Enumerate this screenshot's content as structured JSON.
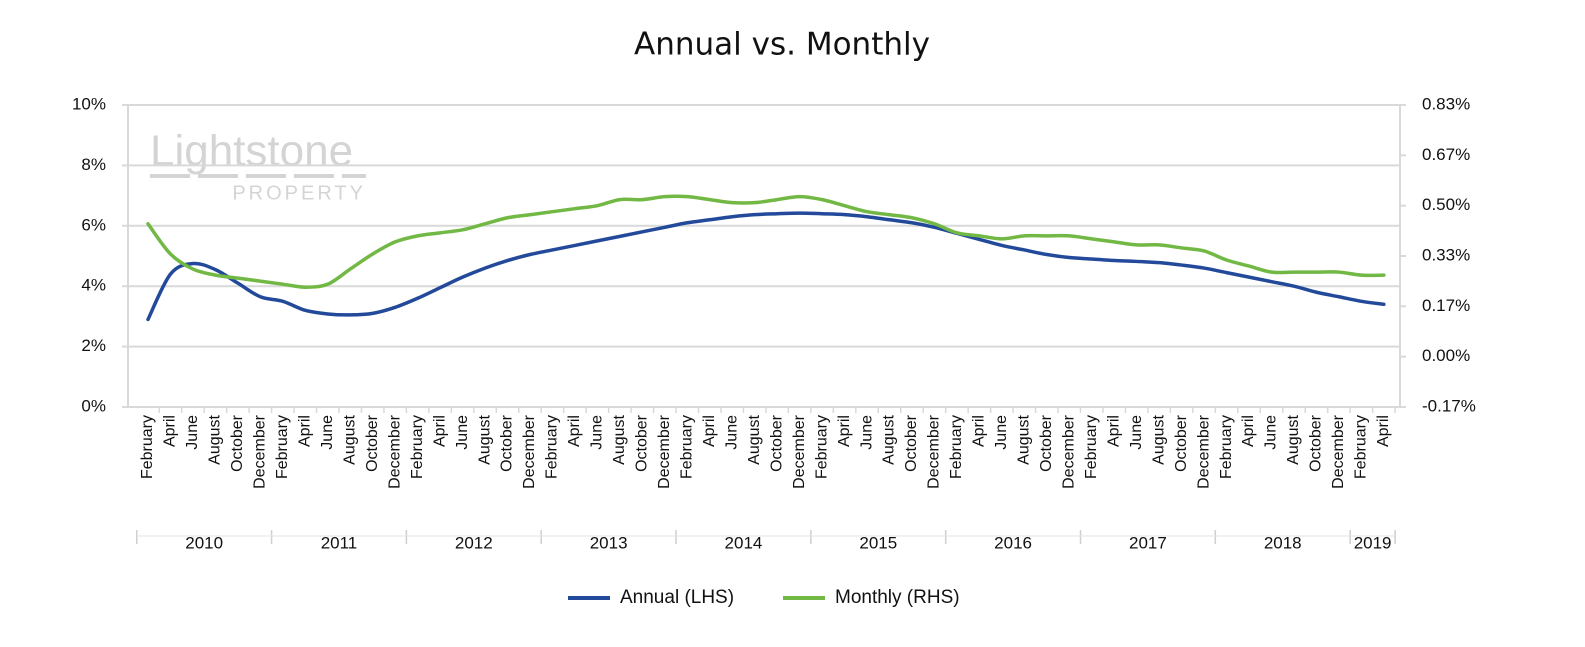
{
  "chart_data": {
    "type": "line",
    "title": "Annual vs. Monthly",
    "watermark": {
      "name": "Lightstone",
      "sub": "PROPERTY"
    },
    "groups": [
      {
        "label": "2010",
        "categories": [
          "February",
          "April",
          "June",
          "August",
          "October",
          "December"
        ]
      },
      {
        "label": "2011",
        "categories": [
          "February",
          "April",
          "June",
          "August",
          "October",
          "December"
        ]
      },
      {
        "label": "2012",
        "categories": [
          "February",
          "April",
          "June",
          "August",
          "October",
          "December"
        ]
      },
      {
        "label": "2013",
        "categories": [
          "February",
          "April",
          "June",
          "August",
          "October",
          "December"
        ]
      },
      {
        "label": "2014",
        "categories": [
          "February",
          "April",
          "June",
          "August",
          "October",
          "December"
        ]
      },
      {
        "label": "2015",
        "categories": [
          "February",
          "April",
          "June",
          "August",
          "October",
          "December"
        ]
      },
      {
        "label": "2016",
        "categories": [
          "February",
          "April",
          "June",
          "August",
          "October",
          "December"
        ]
      },
      {
        "label": "2017",
        "categories": [
          "February",
          "April",
          "June",
          "August",
          "October",
          "December"
        ]
      },
      {
        "label": "2018",
        "categories": [
          "February",
          "April",
          "June",
          "August",
          "October",
          "December"
        ]
      },
      {
        "label": "2019",
        "categories": [
          "February",
          "April"
        ]
      }
    ],
    "ylim": [
      0,
      10
    ],
    "yticks": [
      {
        "value": 0,
        "label": "0%"
      },
      {
        "value": 2,
        "label": "2%"
      },
      {
        "value": 4,
        "label": "4%"
      },
      {
        "value": 6,
        "label": "6%"
      },
      {
        "value": 8,
        "label": "8%"
      },
      {
        "value": 10,
        "label": "10%"
      }
    ],
    "y2lim": [
      -0.1667,
      0.8333
    ],
    "y2ticks": [
      {
        "value": -0.1667,
        "label": "-0.17%"
      },
      {
        "value": 0,
        "label": "0.00%"
      },
      {
        "value": 0.1667,
        "label": "0.17%"
      },
      {
        "value": 0.3333,
        "label": "0.33%"
      },
      {
        "value": 0.5,
        "label": "0.50%"
      },
      {
        "value": 0.6667,
        "label": "0.67%"
      },
      {
        "value": 0.8333,
        "label": "0.83%"
      }
    ],
    "grid": true,
    "legend": "bottom",
    "series": [
      {
        "name": "Annual (LHS)",
        "color": "#234a9a",
        "axis": "y",
        "values": [
          2.9,
          4.4,
          4.75,
          4.55,
          4.1,
          3.65,
          3.5,
          3.2,
          3.08,
          3.05,
          3.1,
          3.3,
          3.6,
          3.95,
          4.3,
          4.6,
          4.85,
          5.05,
          5.2,
          5.35,
          5.5,
          5.65,
          5.8,
          5.95,
          6.1,
          6.2,
          6.3,
          6.37,
          6.4,
          6.42,
          6.4,
          6.37,
          6.3,
          6.2,
          6.1,
          5.95,
          5.75,
          5.55,
          5.35,
          5.2,
          5.05,
          4.95,
          4.9,
          4.85,
          4.82,
          4.78,
          4.7,
          4.6,
          4.45,
          4.3,
          4.15,
          4.0,
          3.8,
          3.65,
          3.5,
          3.4
        ]
      },
      {
        "name": "Monthly (RHS)",
        "color": "#72b844",
        "axis": "y2",
        "values": [
          0.44,
          0.34,
          0.29,
          0.27,
          0.26,
          0.25,
          0.24,
          0.23,
          0.24,
          0.29,
          0.34,
          0.38,
          0.4,
          0.41,
          0.42,
          0.44,
          0.46,
          0.47,
          0.48,
          0.49,
          0.5,
          0.52,
          0.52,
          0.53,
          0.53,
          0.52,
          0.51,
          0.51,
          0.52,
          0.53,
          0.52,
          0.5,
          0.48,
          0.47,
          0.46,
          0.44,
          0.41,
          0.4,
          0.39,
          0.4,
          0.4,
          0.4,
          0.39,
          0.38,
          0.37,
          0.37,
          0.36,
          0.35,
          0.32,
          0.3,
          0.28,
          0.28,
          0.28,
          0.28,
          0.27,
          0.27
        ]
      }
    ]
  }
}
